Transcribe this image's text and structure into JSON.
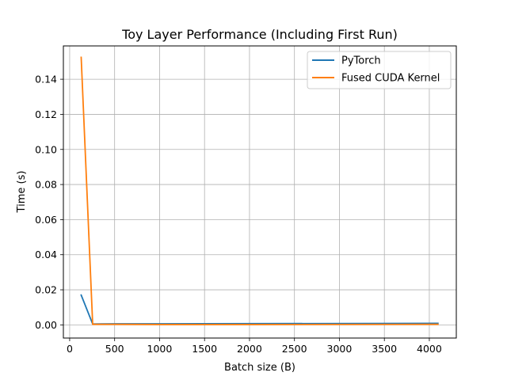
{
  "chart_data": {
    "type": "line",
    "title": "Toy Layer Performance (Including First Run)",
    "xlabel": "Batch size (B)",
    "ylabel": "Time (s)",
    "xlim": [
      -70,
      4300
    ],
    "ylim": [
      -0.0075,
      0.159
    ],
    "xticks": [
      0,
      500,
      1000,
      1500,
      2000,
      2500,
      3000,
      3500,
      4000
    ],
    "xtick_labels": [
      "0",
      "500",
      "1000",
      "1500",
      "2000",
      "2500",
      "3000",
      "3500",
      "4000"
    ],
    "yticks": [
      0.0,
      0.02,
      0.04,
      0.06,
      0.08,
      0.1,
      0.12,
      0.14
    ],
    "ytick_labels": [
      "0.00",
      "0.02",
      "0.04",
      "0.06",
      "0.08",
      "0.10",
      "0.12",
      "0.14"
    ],
    "grid": true,
    "legend_position": "top-right",
    "x": [
      128,
      256,
      512,
      1024,
      2048,
      4096
    ],
    "series": [
      {
        "name": "PyTorch",
        "color": "#1f77b4",
        "values": [
          0.017,
          0.0005,
          0.0006,
          0.0006,
          0.0007,
          0.0009
        ]
      },
      {
        "name": "Fused CUDA Kernel",
        "color": "#ff7f0e",
        "values": [
          0.1525,
          0.0003,
          0.0003,
          0.0002,
          0.0002,
          0.0003
        ]
      }
    ]
  }
}
